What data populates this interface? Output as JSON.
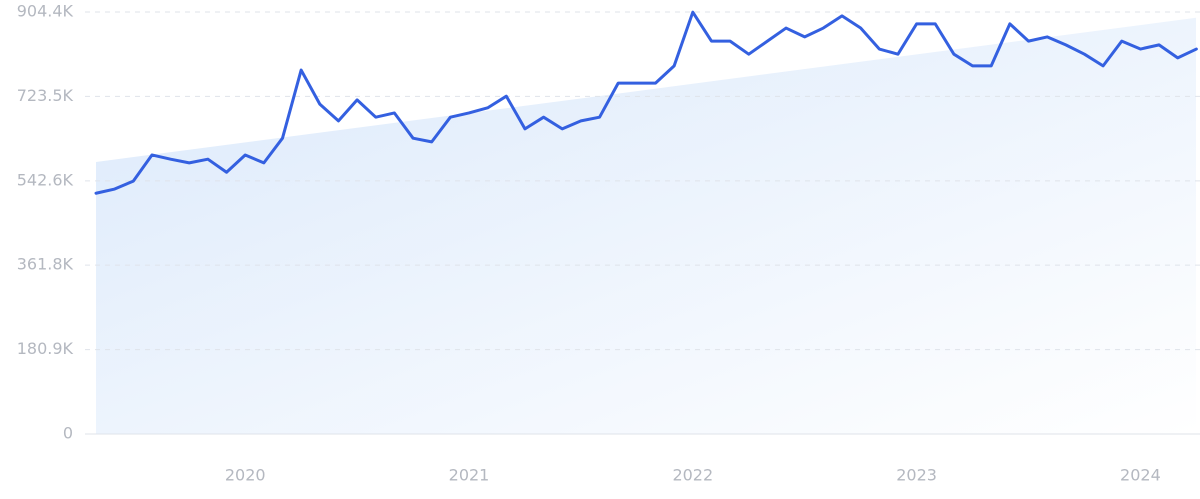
{
  "chart_data": {
    "type": "line",
    "categories": [
      null,
      null,
      null,
      null,
      null,
      null,
      null,
      null,
      "2020",
      null,
      null,
      null,
      null,
      null,
      null,
      null,
      null,
      null,
      null,
      null,
      "2021",
      null,
      null,
      null,
      null,
      null,
      null,
      null,
      null,
      null,
      null,
      null,
      "2022",
      null,
      null,
      null,
      null,
      null,
      null,
      null,
      null,
      null,
      null,
      null,
      "2023",
      null,
      null,
      null,
      null,
      null,
      null,
      null,
      null,
      null,
      null,
      null,
      "2024",
      null,
      null,
      null
    ],
    "values": [
      516000,
      525000,
      542000,
      598000,
      589000,
      581000,
      589000,
      561000,
      598000,
      581000,
      634000,
      780000,
      707000,
      671000,
      716000,
      679000,
      688000,
      634000,
      626000,
      679000,
      688000,
      699000,
      724000,
      654000,
      679000,
      654000,
      671000,
      679000,
      752000,
      752000,
      752000,
      789000,
      904000,
      842000,
      842000,
      814000,
      842000,
      870000,
      851000,
      870000,
      896000,
      870000,
      825000,
      814000,
      879000,
      879000,
      814000,
      789000,
      789000,
      879000,
      842000,
      851000,
      834000,
      814000,
      789000,
      842000,
      825000,
      834000,
      806000,
      825000
    ],
    "color": "#3460e0",
    "trend": [
      583000,
      892000
    ],
    "trend_color": "#dbe9fb",
    "ylim": [
      0,
      904400
    ],
    "yticks": [
      0,
      {
        "value": 180900,
        "label": "180.9K"
      },
      {
        "value": 361800,
        "label": "361.8K"
      },
      {
        "value": 542600,
        "label": "542.6K"
      },
      {
        "value": 723500,
        "label": "723.5K"
      },
      {
        "value": 904400,
        "label": "904.4K"
      }
    ],
    "grid": true
  }
}
